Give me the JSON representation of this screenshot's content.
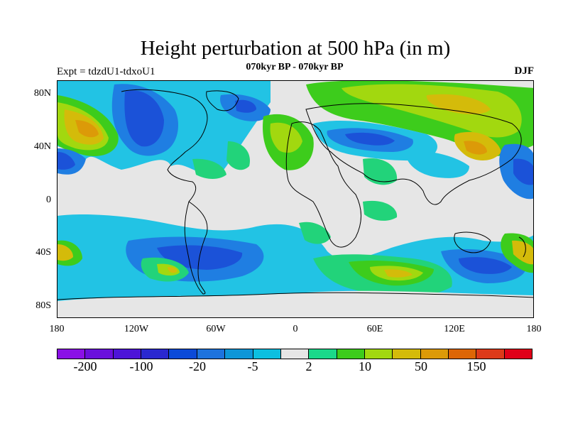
{
  "title": "Height perturbation at 500 hPa (in m)",
  "subtitle": "070kyr BP - 070kyr BP",
  "left_label": "Expt = tdzdU1-tdxoU1",
  "right_label": "DJF",
  "map": {
    "y_ticks": [
      "80N",
      "40N",
      "0",
      "40S",
      "80S"
    ],
    "x_ticks": [
      "180",
      "120W",
      "60W",
      "0",
      "60E",
      "120E",
      "180"
    ]
  },
  "colorbar": {
    "colors": [
      "#8a10e6",
      "#6a0fdc",
      "#4d14d8",
      "#2a28d0",
      "#0b4ad8",
      "#1d73de",
      "#0d96d8",
      "#0cbfe0",
      "#e6e6e6",
      "#1bd98a",
      "#3dcc1c",
      "#a2d80f",
      "#d4bb0a",
      "#dc9a08",
      "#dd6606",
      "#dd3a1a",
      "#e00018"
    ],
    "labels": [
      "-200",
      "-100",
      "-20",
      "-5",
      "2",
      "10",
      "50",
      "150"
    ]
  },
  "accent_colors": {
    "dark_blue": "#1b52d8",
    "mid_blue": "#1f7ee2",
    "cyan": "#22c3e4",
    "green": "#22d37a",
    "light_green": "#9ad80f",
    "yellow": "#d6b00c",
    "orange": "#d98a0a"
  }
}
